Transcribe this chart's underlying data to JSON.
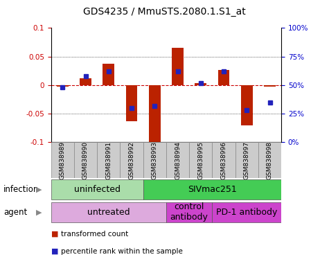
{
  "title": "GDS4235 / MmuSTS.2080.1.S1_at",
  "samples": [
    "GSM838989",
    "GSM838990",
    "GSM838991",
    "GSM838992",
    "GSM838993",
    "GSM838994",
    "GSM838995",
    "GSM838996",
    "GSM838997",
    "GSM838998"
  ],
  "transformed_counts": [
    -0.002,
    0.012,
    0.038,
    -0.063,
    -0.101,
    0.065,
    0.003,
    0.027,
    -0.07,
    -0.003
  ],
  "percentile_ranks": [
    48,
    58,
    62,
    30,
    32,
    62,
    52,
    62,
    28,
    35
  ],
  "ylim": [
    -0.1,
    0.1
  ],
  "yticks_left": [
    -0.1,
    -0.05,
    0.0,
    0.05,
    0.1
  ],
  "ytick_left_labels": [
    "-0.1",
    "-0.05",
    "0",
    "0.05",
    "0.1"
  ],
  "right_tick_positions": [
    -0.1,
    -0.05,
    0.0,
    0.05,
    0.1
  ],
  "right_tick_labels": [
    "0%",
    "25%",
    "50%",
    "75%",
    "100%"
  ],
  "bar_color": "#bb2200",
  "dot_color": "#2222bb",
  "zero_line_color": "#cc0000",
  "infection_groups": [
    {
      "label": "uninfected",
      "start": 0,
      "end": 4,
      "color": "#aaddaa"
    },
    {
      "label": "SIVmac251",
      "start": 4,
      "end": 10,
      "color": "#44cc55"
    }
  ],
  "agent_groups": [
    {
      "label": "untreated",
      "start": 0,
      "end": 5,
      "color": "#ddaadd"
    },
    {
      "label": "control\nantibody",
      "start": 5,
      "end": 7,
      "color": "#cc44cc"
    },
    {
      "label": "PD-1 antibody",
      "start": 7,
      "end": 10,
      "color": "#cc44cc"
    }
  ],
  "legend_items": [
    {
      "color": "#bb2200",
      "label": "transformed count"
    },
    {
      "color": "#2222bb",
      "label": "percentile rank within the sample"
    }
  ],
  "bar_width": 0.5,
  "title_fontsize": 10,
  "tick_fontsize": 7.5,
  "label_fontsize": 8.5,
  "sample_fontsize": 6.5,
  "group_fontsize": 9
}
